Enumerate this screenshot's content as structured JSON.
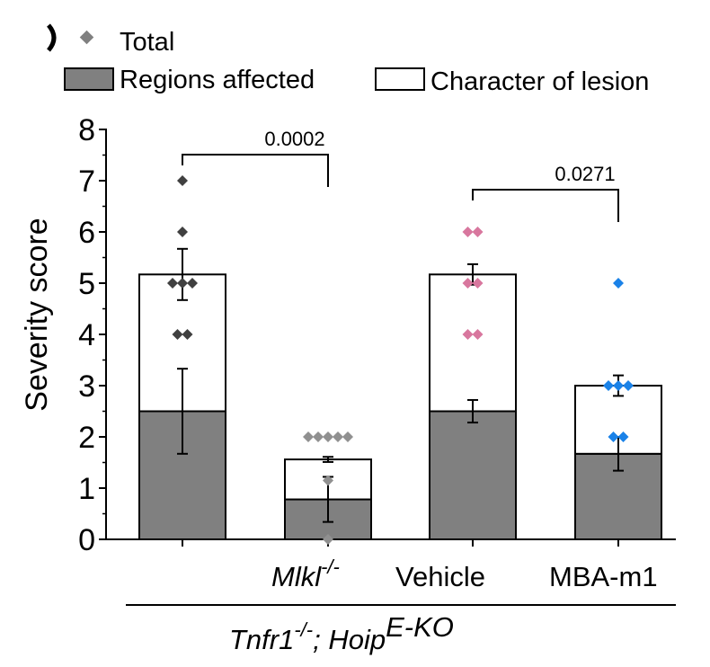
{
  "chart_data": {
    "type": "bar",
    "stacked": true,
    "ylabel": "Severity score",
    "ylim": [
      0,
      8
    ],
    "yticks": [
      "0",
      "1",
      "2",
      "3",
      "4",
      "5",
      "6",
      "7",
      "8"
    ],
    "legend": {
      "total": "Total",
      "regions": "Regions affected",
      "character": "Character of lesion"
    },
    "categories": [
      "",
      "Mlkl",
      "Vehicle",
      "MBA-m1"
    ],
    "mlkl_label": "Mlkl",
    "mlkl_sup": "-/-",
    "group_label_main": "Tnfr1",
    "group_label_sup1": "-/-",
    "group_label_mid": "; Hoip",
    "group_label_sup2": "E-KO",
    "series": [
      {
        "name": "Regions affected",
        "values": [
          2.5,
          0.78,
          2.5,
          1.67
        ],
        "errors": [
          0.83,
          0.44,
          0.22,
          0.33
        ],
        "color": "#808080"
      },
      {
        "name": "Character of lesion",
        "values": [
          2.67,
          0.78,
          2.67,
          1.33
        ],
        "errors": [
          0.5,
          0.05,
          0.2,
          0.2
        ],
        "color": "#ffffff"
      }
    ],
    "total_points": [
      {
        "values": [
          7,
          6,
          5,
          5,
          4,
          4,
          5
        ],
        "color": "#404040"
      },
      {
        "values": [
          2,
          2,
          2,
          2,
          2,
          1.15,
          0
        ],
        "color": "#909090"
      },
      {
        "values": [
          6,
          6,
          5,
          5,
          4,
          4
        ],
        "color": "#d8779e"
      },
      {
        "values": [
          5,
          3,
          3,
          3,
          2,
          2
        ],
        "color": "#1a82e8"
      }
    ],
    "comparisons": [
      {
        "from": 0,
        "to": 1,
        "p": "0.0002"
      },
      {
        "from": 2,
        "to": 3,
        "p": "0.0271"
      }
    ]
  }
}
